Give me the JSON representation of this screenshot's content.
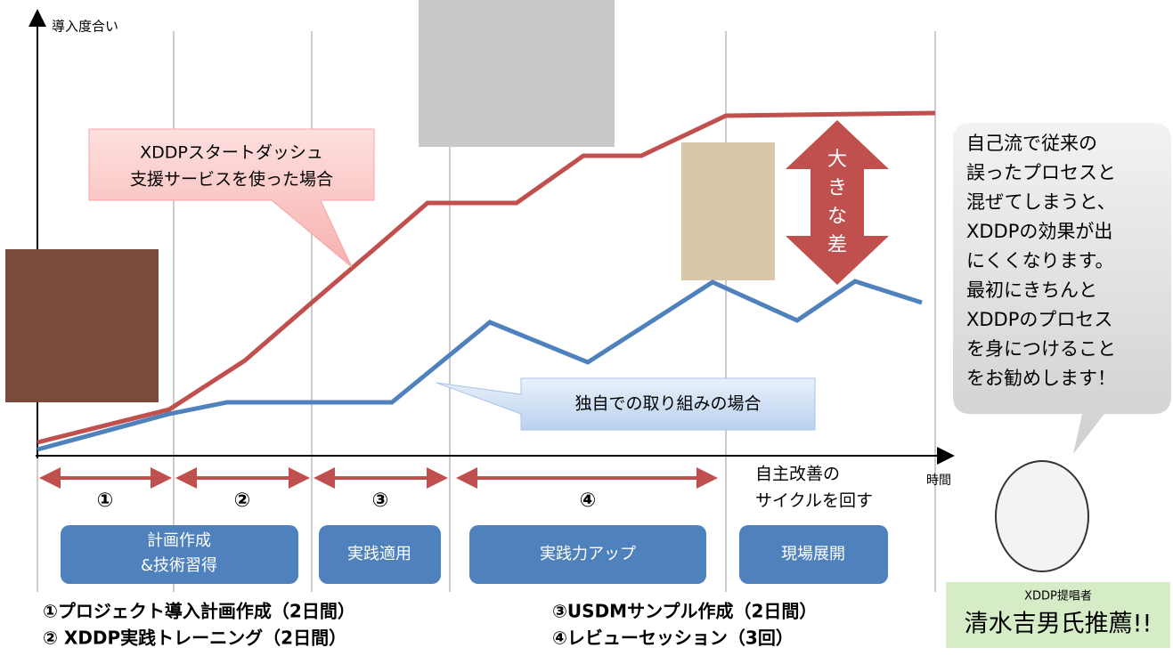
{
  "axes": {
    "y_label": "導入度合い",
    "x_label": "時間"
  },
  "callouts": {
    "start_dash": [
      "XDDPスタートダッシュ",
      "支援サービスを使った場合"
    ],
    "own": "独自での取り組みの場合",
    "gap": [
      "大",
      "き",
      "な",
      "差"
    ]
  },
  "bubble": [
    "自己流で従来の",
    "誤ったプロセスと",
    "混ぜてしまうと、",
    "XDDPの効果が出",
    "にくくなります。",
    "最初にきちんと",
    "XDDPのプロセス",
    "を身につけること",
    "をお勧めします！"
  ],
  "phases": [
    "①",
    "②",
    "③",
    "④"
  ],
  "phase5": [
    "自主改善の",
    "サイクルを回す"
  ],
  "boxes": [
    [
      "計画作成",
      "&技術習得"
    ],
    [
      "実践適用"
    ],
    [
      "実践力アップ"
    ],
    [
      "現場展開"
    ]
  ],
  "notes": [
    "①プロジェクト導入計画作成（2日間）",
    "② XDDP実践トレーニング（2日間）",
    "③USDMサンプル作成（2日間）",
    "④レビューセッション（3回）"
  ],
  "endorser": {
    "role": "XDDP提唱者",
    "name": "清水吉男氏推薦!!"
  }
}
